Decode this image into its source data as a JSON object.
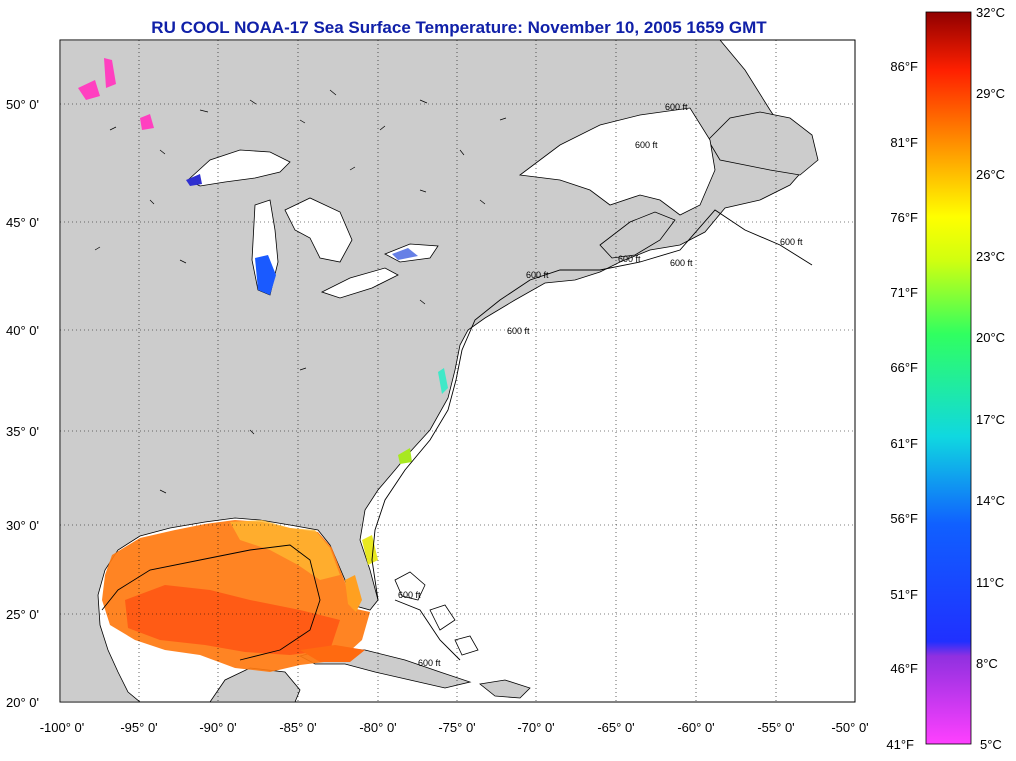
{
  "title": "RU COOL  NOAA-17  Sea Surface Temperature:  November 10, 2005 1659 GMT",
  "lat_ticks": [
    "50° 0'",
    "45° 0'",
    "40° 0'",
    "35° 0'",
    "30° 0'",
    "25° 0'",
    "20° 0'"
  ],
  "lon_ticks": [
    "-100° 0'",
    "-95° 0'",
    "-90° 0'",
    "-85° 0'",
    "-80° 0'",
    "-75° 0'",
    "-70° 0'",
    "-65° 0'",
    "-60° 0'",
    "-55° 0'",
    "-50° 0'"
  ],
  "isobath_label": "600 ft",
  "colorbar": {
    "fahrenheit": [
      "86°F",
      "81°F",
      "76°F",
      "71°F",
      "66°F",
      "61°F",
      "56°F",
      "51°F",
      "46°F",
      "41°F"
    ],
    "celsius": [
      "32°C",
      "29°C",
      "26°C",
      "23°C",
      "20°C",
      "17°C",
      "14°C",
      "11°C",
      "8°C",
      "5°C"
    ],
    "range_c": [
      5,
      32
    ],
    "colors": [
      "#ff40ff",
      "#9030e0",
      "#2030ff",
      "#10c8ff",
      "#20ff60",
      "#ffff00",
      "#ff9000",
      "#ff2000",
      "#900000"
    ]
  },
  "colors": {
    "land": "#cccccc",
    "water": "#ffffff",
    "title": "#1020a8"
  }
}
